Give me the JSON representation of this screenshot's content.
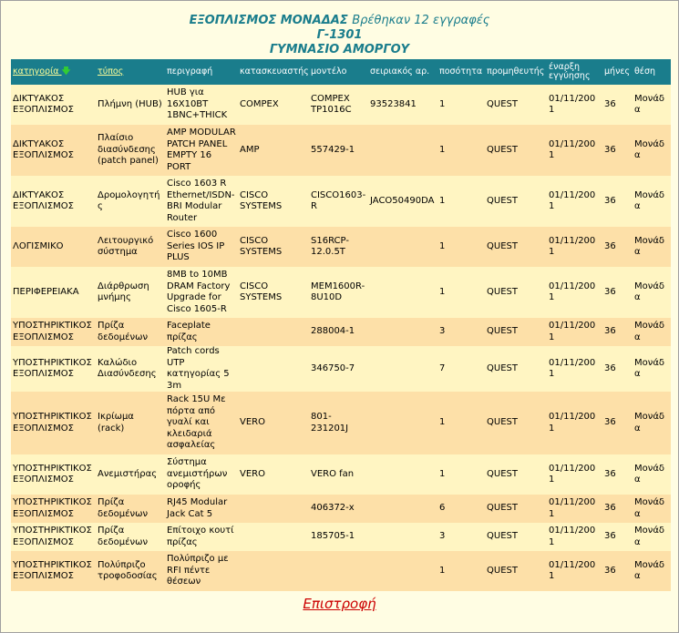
{
  "header": {
    "title": "ΕΞΟΠΛΙΣΜΟΣ ΜΟΝΑΔΑΣ",
    "count_text": "Βρέθηκαν 12 εγγραφές",
    "code": "Γ-1301",
    "school": "ΓΥΜΝΑΣΙΟ ΑΜΟΡΓΟΥ"
  },
  "columns": [
    "κατηγορία",
    "τύπος",
    "περιγραφή",
    "κατασκευαστής",
    "μοντέλο",
    "σειριακός αρ.",
    "ποσότητα",
    "προμηθευτής",
    "έναρξη εγγύησης",
    "μήνες",
    "θέση"
  ],
  "sort_icon": "arrow-down-icon",
  "rows": [
    {
      "category": "ΔΙΚΤΥΑΚΟΣ ΕΞΟΠΛΙΣΜΟΣ",
      "type": "Πλήμνη (HUB)",
      "description": "HUB για 16X10BT 1BNC+THICK",
      "manufacturer": "COMPEX",
      "model": "COMPEX TP1016C",
      "serial": "93523841",
      "quantity": "1",
      "supplier": "QUEST",
      "warranty_start": "01/11/2001",
      "months": "36",
      "location": "Μονάδα"
    },
    {
      "category": "ΔΙΚΤΥΑΚΟΣ ΕΞΟΠΛΙΣΜΟΣ",
      "type": "Πλαίσιο διασύνδεσης (patch panel)",
      "description": "AMP MODULAR PATCH PANEL EMPTY 16 PORT",
      "manufacturer": "AMP",
      "model": "557429-1",
      "serial": "",
      "quantity": "1",
      "supplier": "QUEST",
      "warranty_start": "01/11/2001",
      "months": "36",
      "location": "Μονάδα"
    },
    {
      "category": "ΔΙΚΤΥΑΚΟΣ ΕΞΟΠΛΙΣΜΟΣ",
      "type": "Δρομολογητής",
      "description": "Cisco 1603 R Ethernet/ISDN-BRI Modular Router",
      "manufacturer": "CISCO SYSTEMS",
      "model": "CISCO1603-R",
      "serial": "JACO50490DA",
      "quantity": "1",
      "supplier": "QUEST",
      "warranty_start": "01/11/2001",
      "months": "36",
      "location": "Μονάδα"
    },
    {
      "category": "ΛΟΓΙΣΜΙΚΟ",
      "type": "Λειτουργικό σύστημα",
      "description": "Cisco 1600 Series IOS IP PLUS",
      "manufacturer": "CISCO SYSTEMS",
      "model": "S16RCP-12.0.5T",
      "serial": "",
      "quantity": "1",
      "supplier": "QUEST",
      "warranty_start": "01/11/2001",
      "months": "36",
      "location": "Μονάδα"
    },
    {
      "category": "ΠΕΡΙΦΕΡΕΙΑΚΑ",
      "type": "Διάρθρωση μνήμης",
      "description": "8MB to 10MB DRAM Factory Upgrade for Cisco 1605-R",
      "manufacturer": "CISCO SYSTEMS",
      "model": "MEM1600R-8U10D",
      "serial": "",
      "quantity": "1",
      "supplier": "QUEST",
      "warranty_start": "01/11/2001",
      "months": "36",
      "location": "Μονάδα"
    },
    {
      "category": "ΥΠΟΣΤΗΡΙΚΤΙΚΟΣ ΕΞΟΠΛΙΣΜΟΣ",
      "type": "Πρίζα δεδομένων",
      "description": "Faceplate πρίζας",
      "manufacturer": "",
      "model": "288004-1",
      "serial": "",
      "quantity": "3",
      "supplier": "QUEST",
      "warranty_start": "01/11/2001",
      "months": "36",
      "location": "Μονάδα"
    },
    {
      "category": "ΥΠΟΣΤΗΡΙΚΤΙΚΟΣ ΕΞΟΠΛΙΣΜΟΣ",
      "type": "Καλώδιο Διασύνδεσης",
      "description": "Patch cords UTP κατηγορίας 5 3m",
      "manufacturer": "",
      "model": "346750-7",
      "serial": "",
      "quantity": "7",
      "supplier": "QUEST",
      "warranty_start": "01/11/2001",
      "months": "36",
      "location": "Μονάδα"
    },
    {
      "category": "ΥΠΟΣΤΗΡΙΚΤΙΚΟΣ ΕΞΟΠΛΙΣΜΟΣ",
      "type": "Ικρίωμα (rack)",
      "description": "Rack 15U Με πόρτα από γυαλί και κλειδαριά ασφαλείας",
      "manufacturer": "VERO",
      "model": "801-231201J",
      "serial": "",
      "quantity": "1",
      "supplier": "QUEST",
      "warranty_start": "01/11/2001",
      "months": "36",
      "location": "Μονάδα"
    },
    {
      "category": "ΥΠΟΣΤΗΡΙΚΤΙΚΟΣ ΕΞΟΠΛΙΣΜΟΣ",
      "type": "Ανεμιστήρας",
      "description": "Σύστημα ανεμιστήρων οροφής",
      "manufacturer": "VERO",
      "model": "VERO fan",
      "serial": "",
      "quantity": "1",
      "supplier": "QUEST",
      "warranty_start": "01/11/2001",
      "months": "36",
      "location": "Μονάδα"
    },
    {
      "category": "ΥΠΟΣΤΗΡΙΚΤΙΚΟΣ ΕΞΟΠΛΙΣΜΟΣ",
      "type": "Πρίζα δεδομένων",
      "description": "RJ45 Modular Jack Cat 5",
      "manufacturer": "",
      "model": "406372-x",
      "serial": "",
      "quantity": "6",
      "supplier": "QUEST",
      "warranty_start": "01/11/2001",
      "months": "36",
      "location": "Μονάδα"
    },
    {
      "category": "ΥΠΟΣΤΗΡΙΚΤΙΚΟΣ ΕΞΟΠΛΙΣΜΟΣ",
      "type": "Πρίζα δεδομένων",
      "description": "Επίτοιχο κουτί πρίζας",
      "manufacturer": "",
      "model": "185705-1",
      "serial": "",
      "quantity": "3",
      "supplier": "QUEST",
      "warranty_start": "01/11/2001",
      "months": "36",
      "location": "Μονάδα"
    },
    {
      "category": "ΥΠΟΣΤΗΡΙΚΤΙΚΟΣ ΕΞΟΠΛΙΣΜΟΣ",
      "type": "Πολύπριζο τροφοδοσίας",
      "description": "Πολύπριζο με RFI πέντε θέσεων",
      "manufacturer": "",
      "model": "",
      "serial": "",
      "quantity": "1",
      "supplier": "QUEST",
      "warranty_start": "01/11/2001",
      "months": "36",
      "location": "Μονάδα"
    }
  ],
  "back_link": "Επιστροφή"
}
